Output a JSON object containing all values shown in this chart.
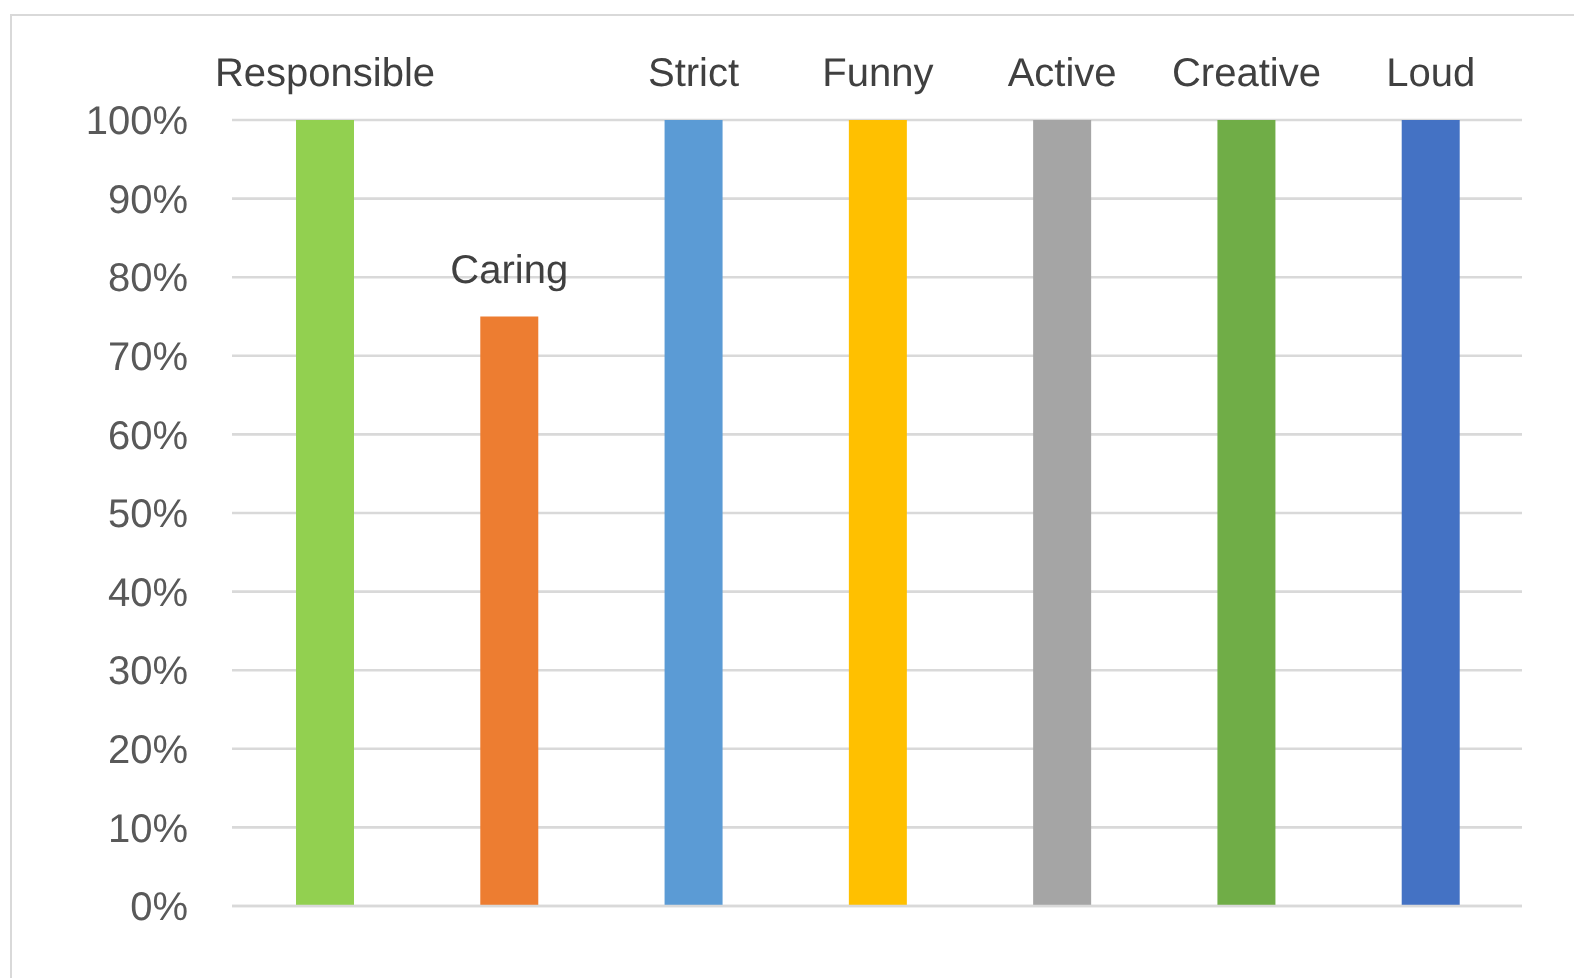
{
  "chart_data": {
    "type": "bar",
    "categories": [
      "Responsible",
      "Caring",
      "Strict",
      "Funny",
      "Active",
      "Creative",
      "Loud"
    ],
    "values": [
      100,
      75,
      100,
      100,
      100,
      100,
      100
    ],
    "colors": [
      "#92d050",
      "#ed7d31",
      "#5b9bd5",
      "#ffc000",
      "#a5a5a5",
      "#70ad47",
      "#4472c4"
    ],
    "ylim": [
      0,
      100
    ],
    "yticks": [
      {
        "value": 0,
        "label": "0%"
      },
      {
        "value": 10,
        "label": "10%"
      },
      {
        "value": 20,
        "label": "20%"
      },
      {
        "value": 30,
        "label": "30%"
      },
      {
        "value": 40,
        "label": "40%"
      },
      {
        "value": 50,
        "label": "50%"
      },
      {
        "value": 60,
        "label": "60%"
      },
      {
        "value": 70,
        "label": "70%"
      },
      {
        "value": 80,
        "label": "80%"
      },
      {
        "value": 90,
        "label": "90%"
      },
      {
        "value": 100,
        "label": "100%"
      }
    ],
    "grid": "y"
  }
}
